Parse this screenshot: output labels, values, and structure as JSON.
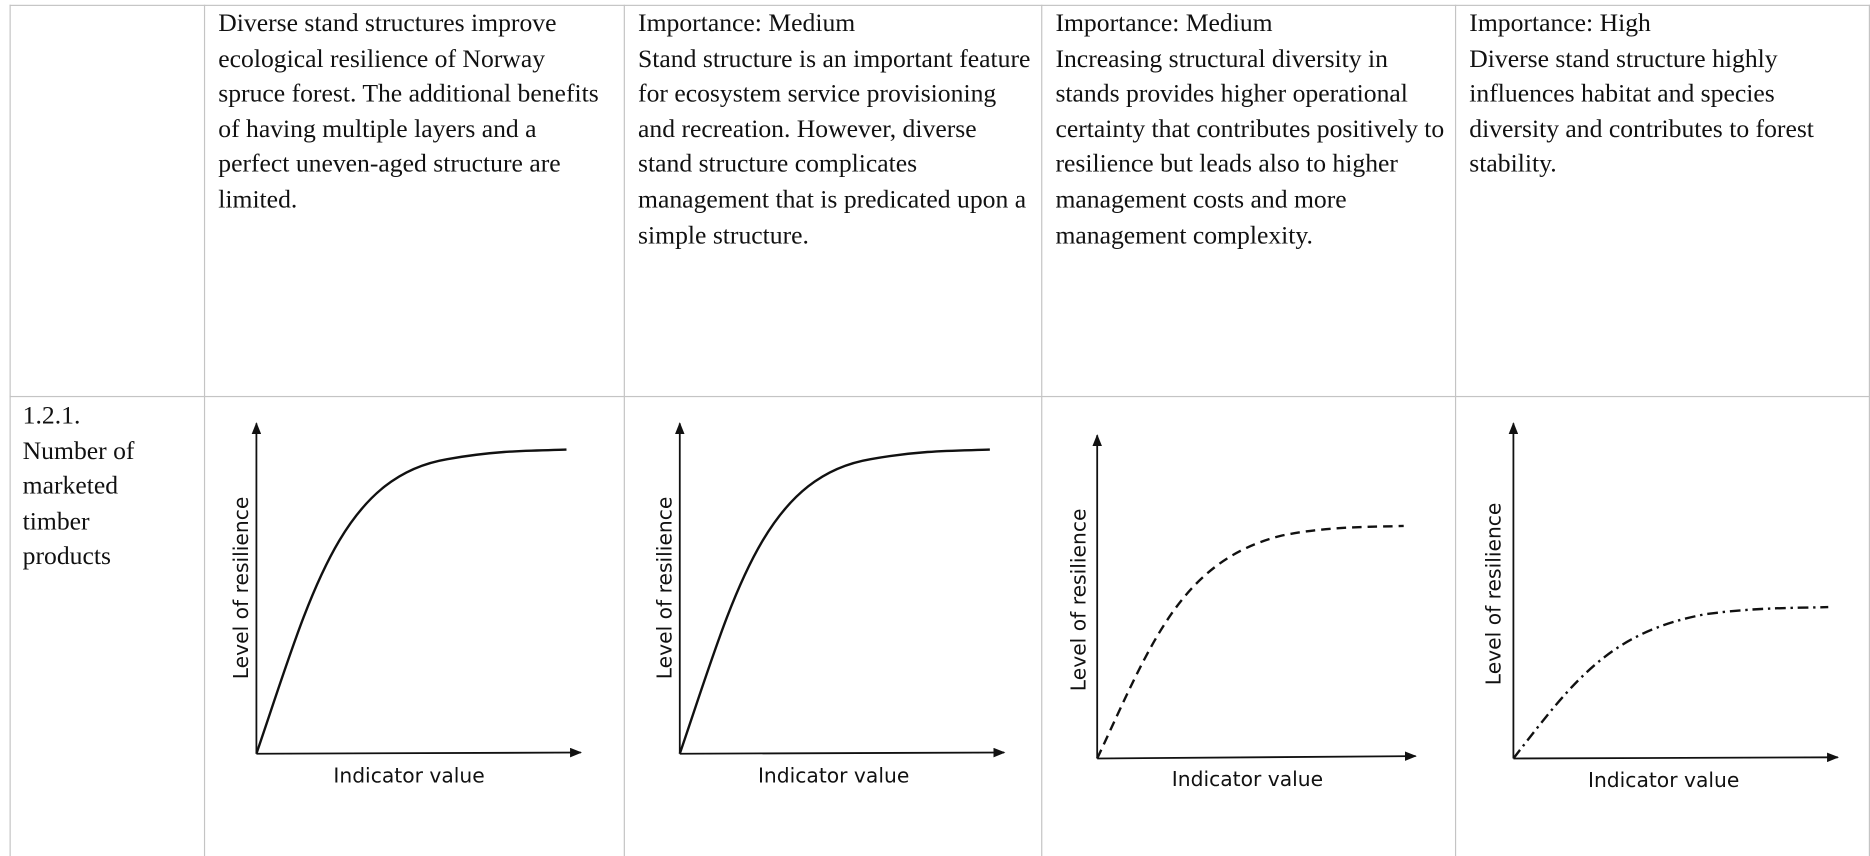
{
  "table": {
    "header_row": {
      "cells": [
        {
          "text": "Diverse stand structures improve ecological resilience of Norway spruce forest. The additional benefits of having multiple layers and a perfect uneven-aged structure are limited."
        },
        {
          "importance": "Importance: Medium",
          "text": "Stand structure is an important feature for ecosystem service provisioning and recreation. However, diverse stand structure complicates management that is predicated upon a simple structure."
        },
        {
          "importance": "Importance: Medium",
          "text": "Increasing structural diversity in stands provides higher operational certainty that contributes positively to resilience but leads also to higher management costs and more management complexity."
        },
        {
          "importance": "Importance: High",
          "text": "Diverse stand structure highly influences habitat and species diversity and contributes to forest stability."
        }
      ]
    },
    "row": {
      "id": "1.2.1.",
      "label": "Number of marketed timber products",
      "charts": [
        {
          "y_label": "Level of resilience",
          "x_label": "Indicator value"
        },
        {
          "y_label": "Level of resilience",
          "x_label": "Indicator value"
        },
        {
          "y_label": "Level of resilience",
          "x_label": "Indicator value"
        },
        {
          "y_label": "Level of resilience",
          "x_label": "Indicator value"
        }
      ]
    }
  }
}
